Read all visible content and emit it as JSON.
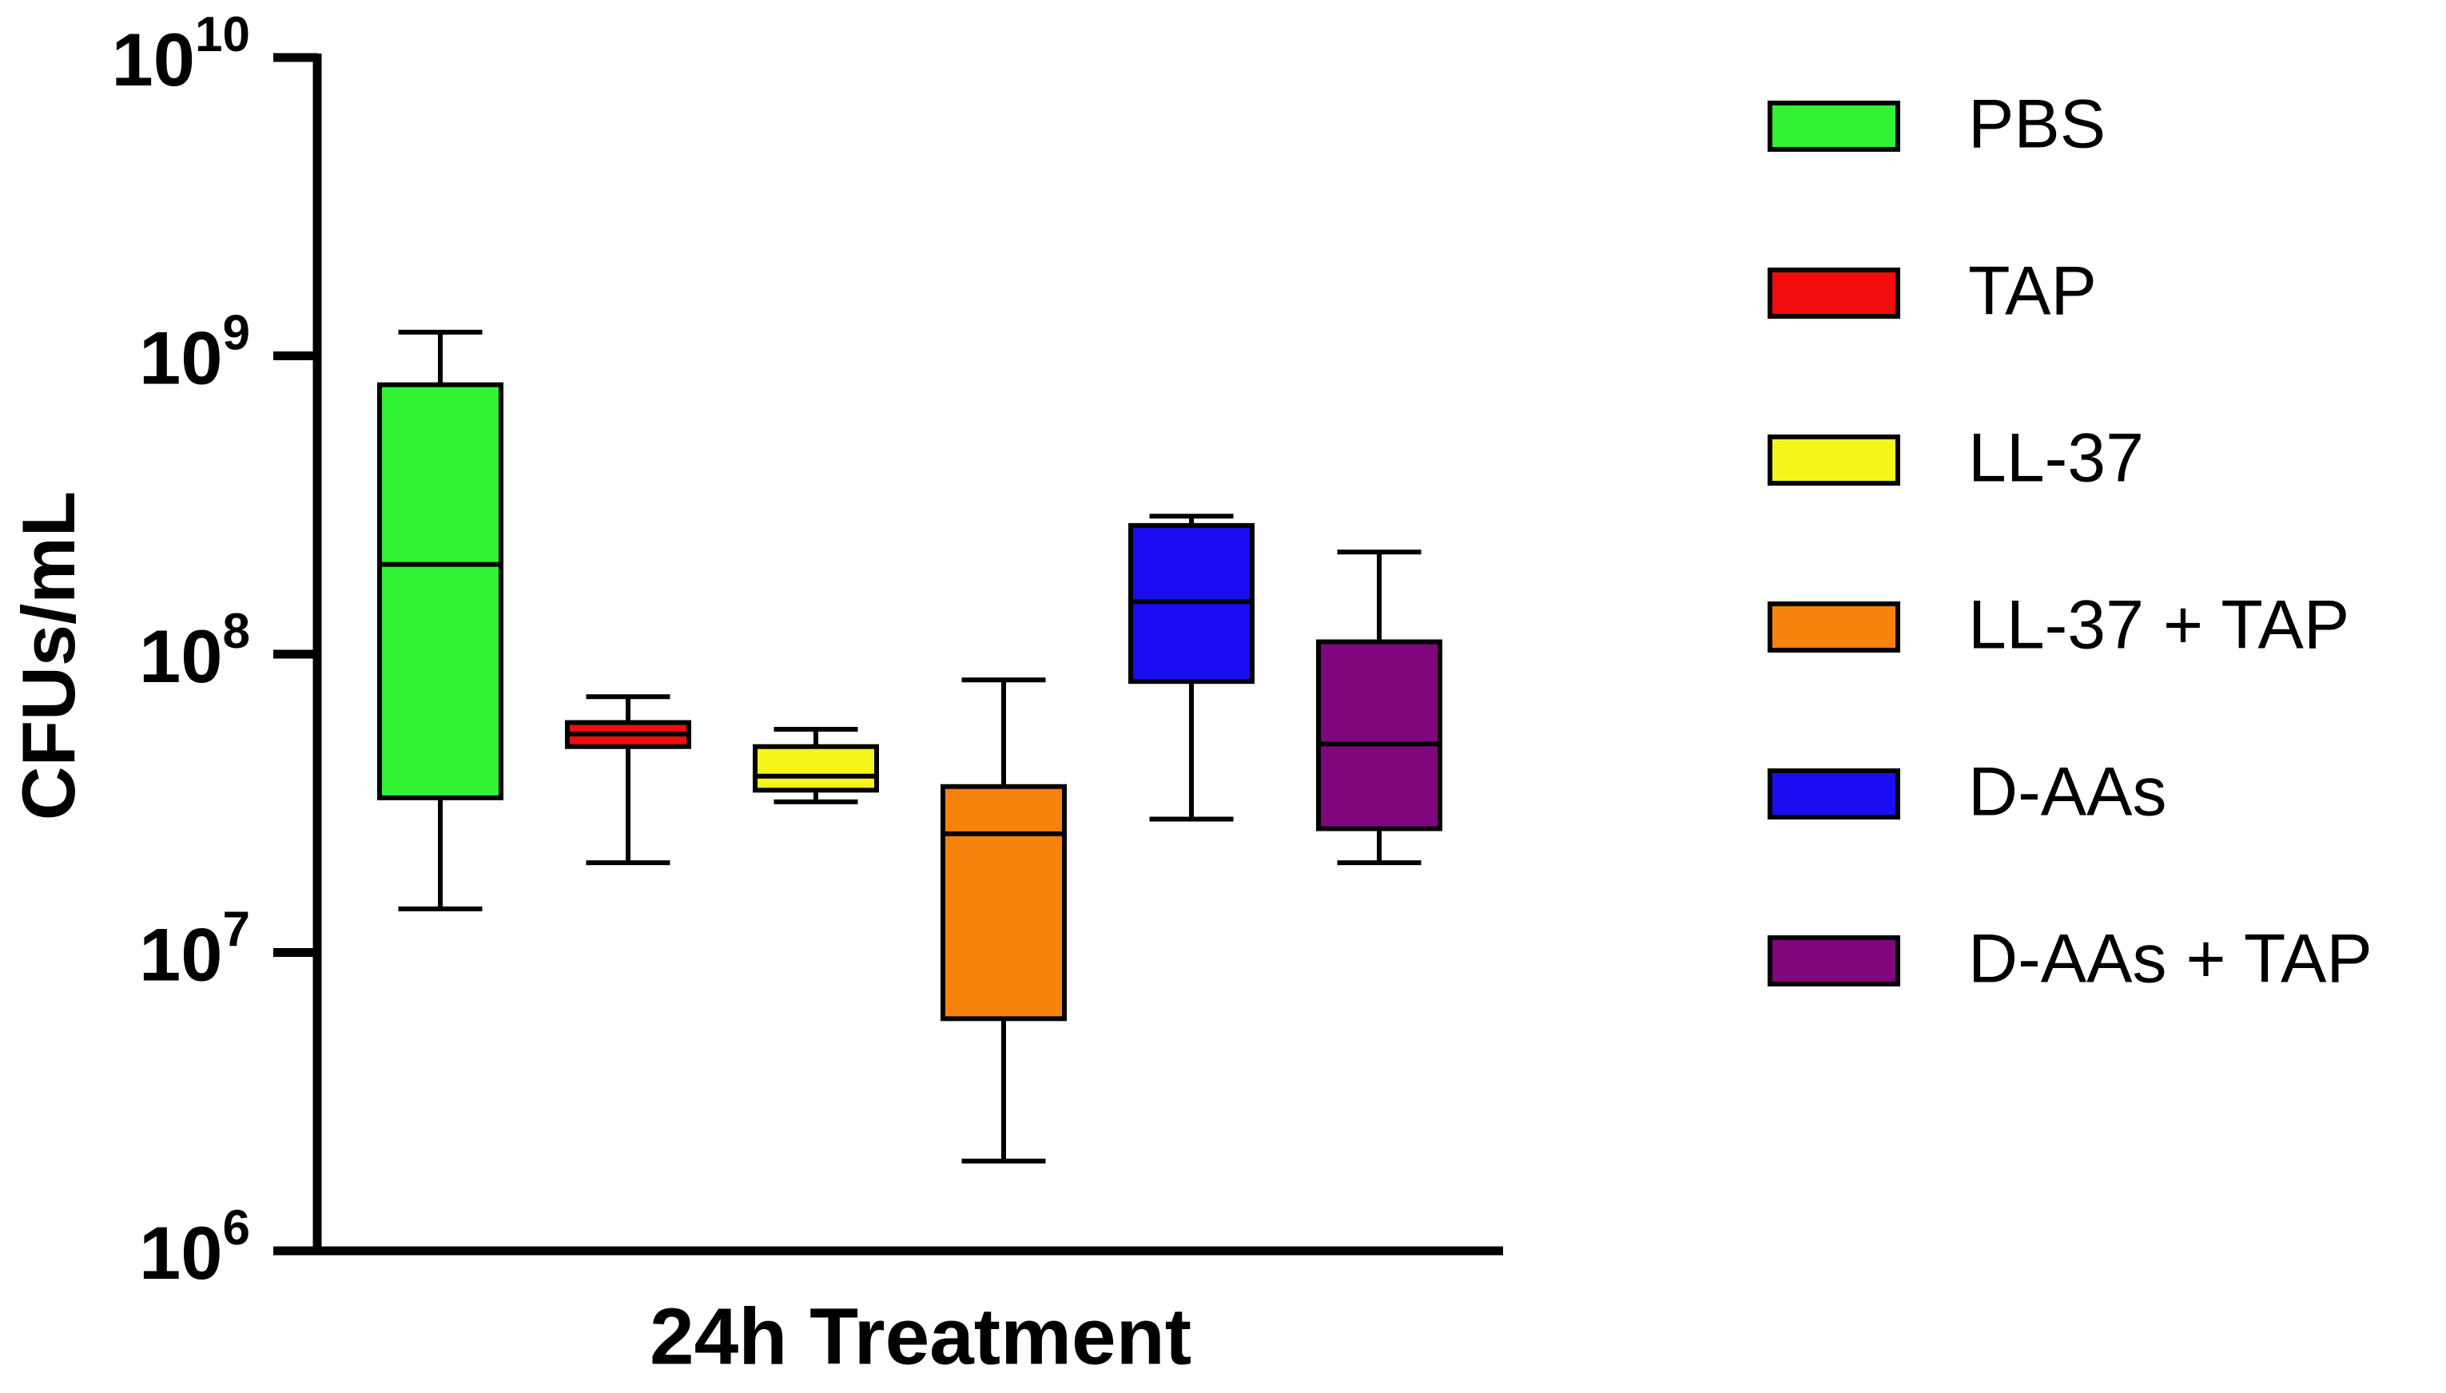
{
  "chart_data": {
    "type": "box",
    "y_label": "CFUs/mL",
    "x_label": "24h Treatment",
    "yscale": "log",
    "ylim": [
      1000000,
      10000000000
    ],
    "yticks": [
      {
        "value": 1000000,
        "label": "10",
        "superscript": "6"
      },
      {
        "value": 10000000,
        "label": "10",
        "superscript": "7"
      },
      {
        "value": 100000000,
        "label": "10",
        "superscript": "8"
      },
      {
        "value": 1000000000,
        "label": "10",
        "superscript": "9"
      },
      {
        "value": 10000000000,
        "label": "10",
        "superscript": "10"
      }
    ],
    "legend": "right",
    "series": [
      {
        "name": "PBS",
        "color": "#33f233",
        "min": 14000000,
        "q1": 33000000,
        "median": 200000000,
        "q3": 800000000,
        "max": 1200000000
      },
      {
        "name": "TAP",
        "color": "#f20d0d",
        "min": 20000000,
        "q1": 49000000,
        "median": 54000000,
        "q3": 59000000,
        "max": 72000000
      },
      {
        "name": "LL-37",
        "color": "#f5f51a",
        "min": 32000000,
        "q1": 35000000,
        "median": 39000000,
        "q3": 49000000,
        "max": 56000000
      },
      {
        "name": "LL-37 + TAP",
        "color": "#f7820d",
        "min": 2000000,
        "q1": 6000000,
        "median": 25000000,
        "q3": 36000000,
        "max": 82000000
      },
      {
        "name": "D-AAs",
        "color": "#1a0df2",
        "min": 28000000,
        "q1": 81000000,
        "median": 150000000,
        "q3": 270000000,
        "max": 290000000
      },
      {
        "name": "D-AAs + TAP",
        "color": "#80067d",
        "min": 20000000,
        "q1": 26000000,
        "median": 50000000,
        "q3": 110000000,
        "max": 220000000
      }
    ]
  }
}
